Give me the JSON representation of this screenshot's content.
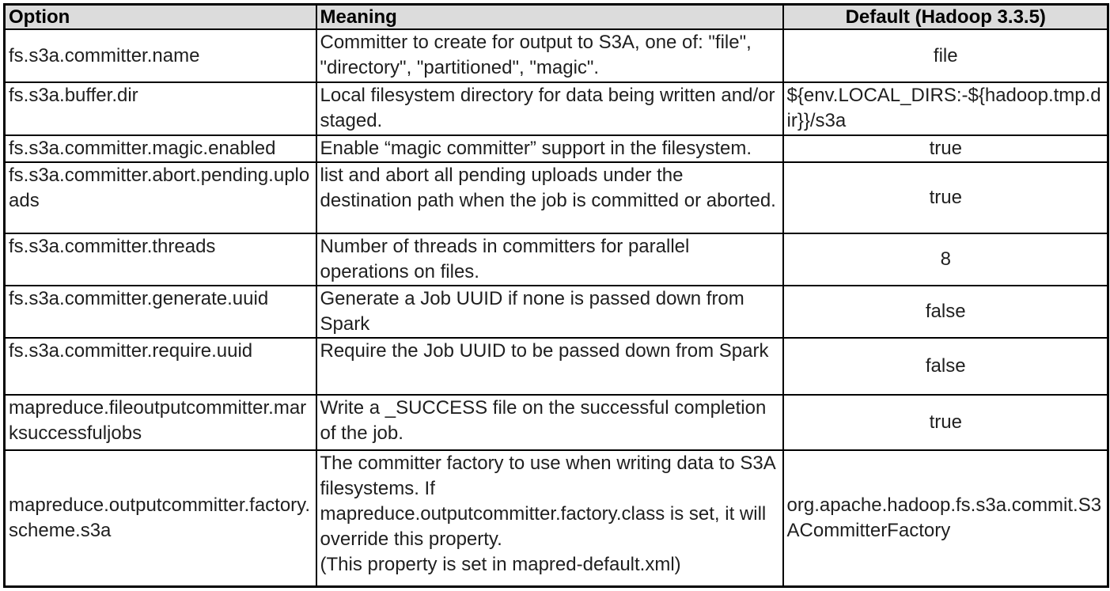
{
  "colors": {
    "header_background": "#dcdcdc",
    "border": "#000000",
    "body_text": "#1f1f1f",
    "header_text": "#000000"
  },
  "table": {
    "headers": [
      "Option",
      "Meaning",
      "Default (Hadoop 3.3.5)"
    ],
    "rows": [
      {
        "option": "fs.s3a.committer.name",
        "meaning": "Committer to create for output to S3A, one of: \"file\", \"directory\", \"partitioned\", \"magic\".",
        "default": "file"
      },
      {
        "option": "fs.s3a.buffer.dir",
        "meaning": "Local filesystem directory for data being written and/or staged.",
        "default": "${env.LOCAL_DIRS:-${hadoop.tmp.dir}}/s3a"
      },
      {
        "option": "fs.s3a.committer.magic.enabled",
        "meaning": "Enable “magic committer” support in the filesystem.",
        "default": "true"
      },
      {
        "option": "fs.s3a.committer.abort.pending.uploads",
        "meaning": "list and abort all pending uploads under the destination path when the job is committed or aborted.",
        "default": "true"
      },
      {
        "option": "fs.s3a.committer.threads",
        "meaning": "Number of threads in committers for parallel operations on files.",
        "default": "8"
      },
      {
        "option": "fs.s3a.committer.generate.uuid",
        "meaning": "Generate a Job UUID if none is passed down from Spark",
        "default": "false"
      },
      {
        "option": "fs.s3a.committer.require.uuid",
        "meaning": "Require the Job UUID to be passed down from Spark",
        "default": "false"
      },
      {
        "option": "mapreduce.fileoutputcommitter.marksuccessfuljobs",
        "meaning": "Write a _SUCCESS file on the successful completion of the job.",
        "default": "true"
      },
      {
        "option": "mapreduce.outputcommitter.factory.scheme.s3a",
        "meaning": "The committer factory to use when writing data to S3A filesystems. If mapreduce.outputcommitter.factory.class is set, it will override this property.\n(This property is set in mapred-default.xml)",
        "default": "org.apache.hadoop.fs.s3a.commit.S3ACommitterFactory"
      }
    ]
  }
}
